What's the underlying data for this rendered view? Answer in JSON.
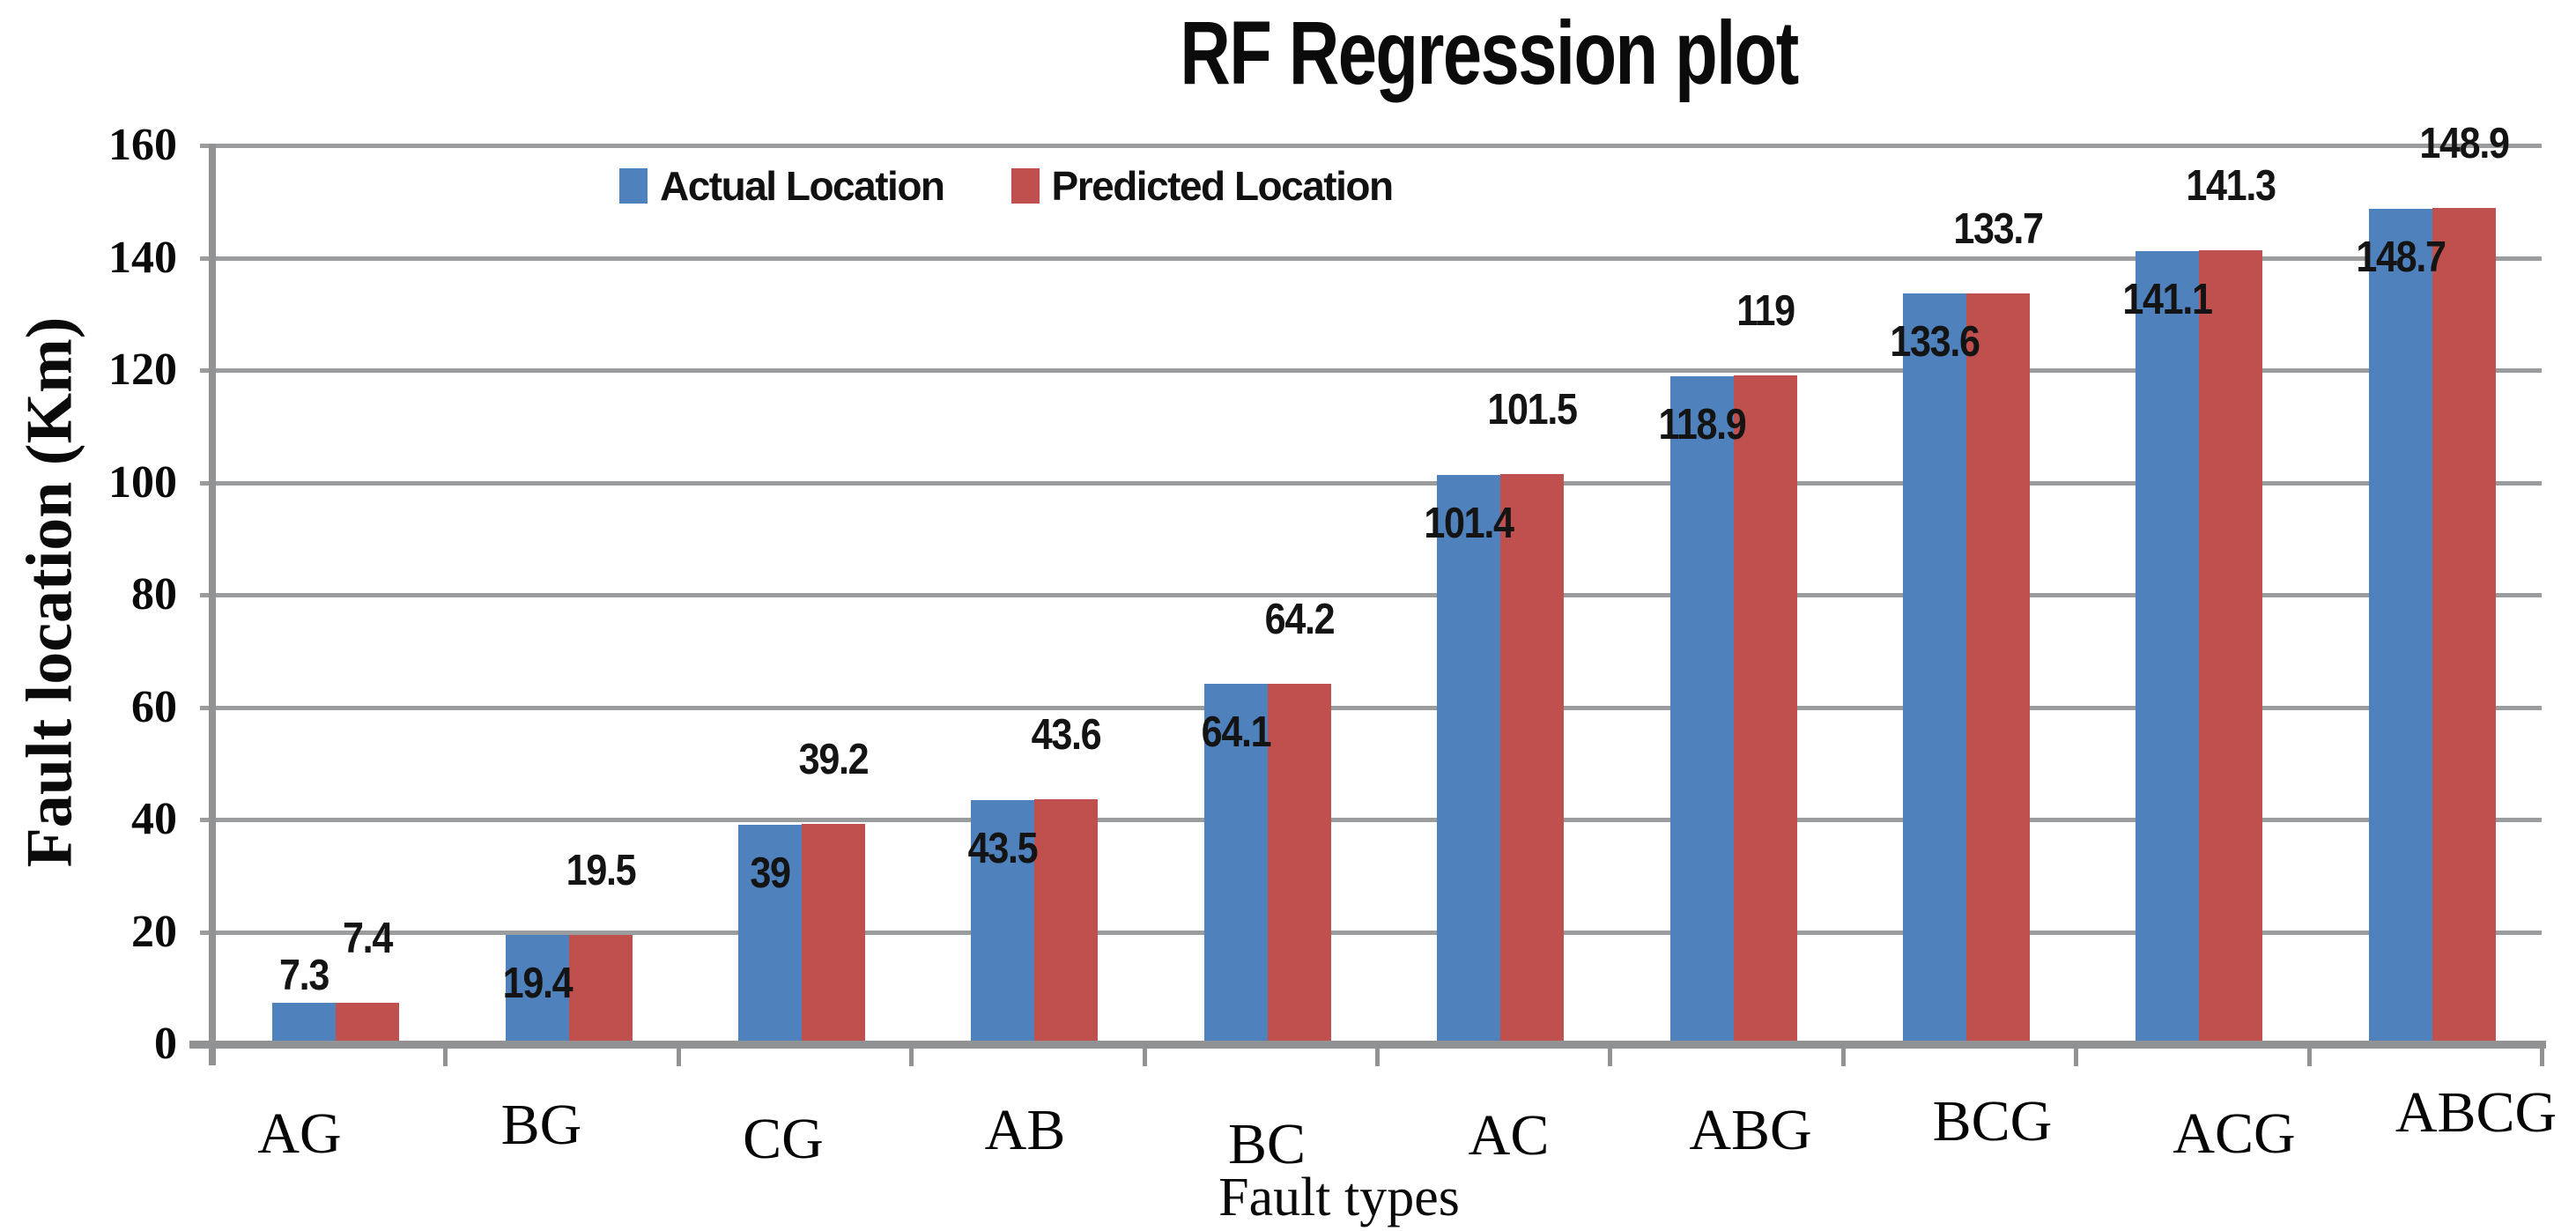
{
  "title": "RF Regression plot",
  "y_axis": {
    "label": "Fault location (Km)",
    "ticks": [
      "0",
      "20",
      "40",
      "60",
      "80",
      "100",
      "120",
      "140",
      "160"
    ]
  },
  "x_axis": {
    "label": "Fault types"
  },
  "legend": {
    "items": [
      {
        "label": "Actual Location",
        "color": "#4F81BD"
      },
      {
        "label": "Predicted Location",
        "color": "#C0504D"
      }
    ]
  },
  "chart_data": {
    "type": "bar",
    "title": "RF Regression plot",
    "categories": [
      "AG",
      "BG",
      "CG",
      "AB",
      "BC",
      "AC",
      "ABG",
      "BCG",
      "ACG",
      "ABCG"
    ],
    "series": [
      {
        "name": "Actual Location",
        "color": "#4F81BD",
        "values": [
          7.3,
          19.4,
          39,
          43.5,
          64.1,
          101.4,
          118.9,
          133.6,
          141.1,
          148.7
        ]
      },
      {
        "name": "Predicted Location",
        "color": "#C0504D",
        "values": [
          7.4,
          19.5,
          39.2,
          43.6,
          64.2,
          101.5,
          119,
          133.7,
          141.3,
          148.9
        ]
      }
    ],
    "xlabel": "Fault types",
    "ylabel": "Fault location (Km)",
    "ylim": [
      0,
      160
    ],
    "ytick_step": 20,
    "grid": true,
    "gridline_color": "#9a9c9e",
    "legend_position": "top-inside",
    "data_labels": true
  }
}
